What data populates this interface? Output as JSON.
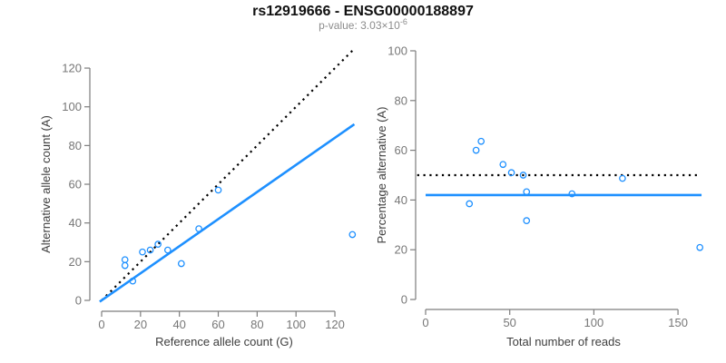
{
  "header": {
    "title": "rs12919666 - ENSG00000188897",
    "subtitle_base": "p-value: 3.03×10",
    "subtitle_exponent": "-6"
  },
  "colors": {
    "accent_blue": "#1E90FF",
    "identity_black": "#000000",
    "axis_line": "#7d7d7d",
    "tick_label": "#777777",
    "axis_title": "#3d3d3d",
    "title": "#111111",
    "subtitle": "#8c8c8c",
    "background": "#ffffff"
  },
  "chart_data": [
    {
      "id": "allele-counts-scatter",
      "type": "scatter",
      "xlabel": "Reference allele count (G)",
      "ylabel": "Alternative allele count (A)",
      "xticks": [
        0,
        20,
        40,
        60,
        80,
        100,
        120
      ],
      "yticks": [
        0,
        20,
        40,
        60,
        80,
        100,
        120
      ],
      "xlim": [
        0,
        130
      ],
      "ylim": [
        0,
        130
      ],
      "grid": false,
      "point_color": "#1E90FF",
      "points": [
        [
          12,
          21
        ],
        [
          12,
          18
        ],
        [
          16,
          10
        ],
        [
          21,
          25
        ],
        [
          25,
          26
        ],
        [
          29,
          29
        ],
        [
          34,
          26
        ],
        [
          41,
          19
        ],
        [
          50,
          37
        ],
        [
          60,
          57
        ],
        [
          129,
          34
        ]
      ],
      "lines": [
        {
          "name": "identity-line",
          "style": "dotted",
          "color": "#000000",
          "points": [
            [
              0,
              0
            ],
            [
              129,
              129
            ]
          ]
        },
        {
          "name": "fitted-line",
          "style": "solid",
          "color": "#1E90FF",
          "points": [
            [
              -1,
              -0.7
            ],
            [
              130,
              91
            ]
          ]
        }
      ]
    },
    {
      "id": "percentage-vs-reads-scatter",
      "type": "scatter",
      "xlabel": "Total number of reads",
      "ylabel": "Percentage alternative (A)",
      "xticks": [
        0,
        50,
        100,
        150
      ],
      "yticks": [
        0,
        20,
        40,
        60,
        80,
        100
      ],
      "xlim": [
        0,
        165
      ],
      "ylim": [
        0,
        100
      ],
      "grid": false,
      "point_color": "#1E90FF",
      "points": [
        [
          33,
          63.6
        ],
        [
          30,
          60.0
        ],
        [
          26,
          38.5
        ],
        [
          46,
          54.3
        ],
        [
          51,
          51.0
        ],
        [
          58,
          50.0
        ],
        [
          60,
          43.3
        ],
        [
          60,
          31.7
        ],
        [
          87,
          42.5
        ],
        [
          117,
          48.7
        ],
        [
          163,
          20.9
        ]
      ],
      "lines": [
        {
          "name": "expected-50-percent-line",
          "style": "dotted",
          "color": "#000000",
          "points": [
            [
              -5,
              50
            ],
            [
              162,
              50
            ]
          ]
        },
        {
          "name": "fitted-percentage-line",
          "style": "solid",
          "color": "#1E90FF",
          "points": [
            [
              0,
              42
            ],
            [
              164,
              42
            ]
          ]
        }
      ]
    }
  ]
}
